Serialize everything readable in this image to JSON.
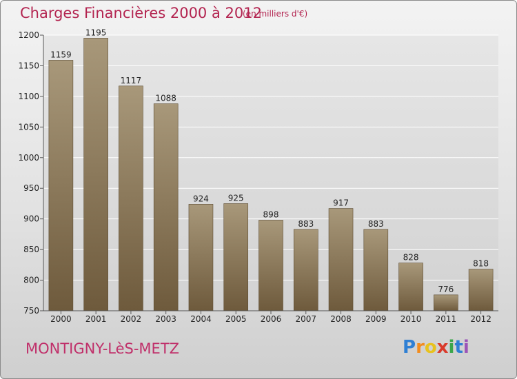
{
  "header": {
    "title": "Charges Financières 2000 à 2012",
    "subtitle": "(en milliers d'€)"
  },
  "footer": {
    "place": "MONTIGNY-LèS-METZ",
    "logo_letters": [
      "P",
      "r",
      "o",
      "x",
      "i",
      "t",
      "i"
    ],
    "logo_colors": [
      "#2e7fd4",
      "#f28c1e",
      "#e8c21e",
      "#d93a2b",
      "#3aa64a",
      "#2e7fd4",
      "#9b55b8"
    ]
  },
  "chart_data": {
    "type": "bar",
    "title": "Charges Financières 2000 à 2012",
    "subtitle": "(en milliers d'€)",
    "categories": [
      "2000",
      "2001",
      "2002",
      "2003",
      "2004",
      "2005",
      "2006",
      "2007",
      "2008",
      "2009",
      "2010",
      "2011",
      "2012"
    ],
    "values": [
      1159,
      1195,
      1117,
      1088,
      924,
      925,
      898,
      883,
      917,
      883,
      828,
      776,
      818
    ],
    "value_labels": [
      "1159",
      "1195",
      "1117",
      "1088",
      "924",
      "925",
      "898",
      "883",
      "917",
      "883",
      "828",
      "776",
      "818"
    ],
    "ylim": [
      750,
      1200
    ],
    "yticks": [
      750,
      800,
      850,
      900,
      950,
      1000,
      1050,
      1100,
      1150,
      1200
    ],
    "ytick_labels": [
      "750",
      "800",
      "850",
      "900",
      "950",
      "1000",
      "1050",
      "1100",
      "1150",
      "1200"
    ],
    "xlabel": "",
    "ylabel": "",
    "grid": true,
    "bar_color_top": "#a8987a",
    "bar_color_bottom": "#6e5a3c",
    "plot_background": "#dcdcdc"
  }
}
